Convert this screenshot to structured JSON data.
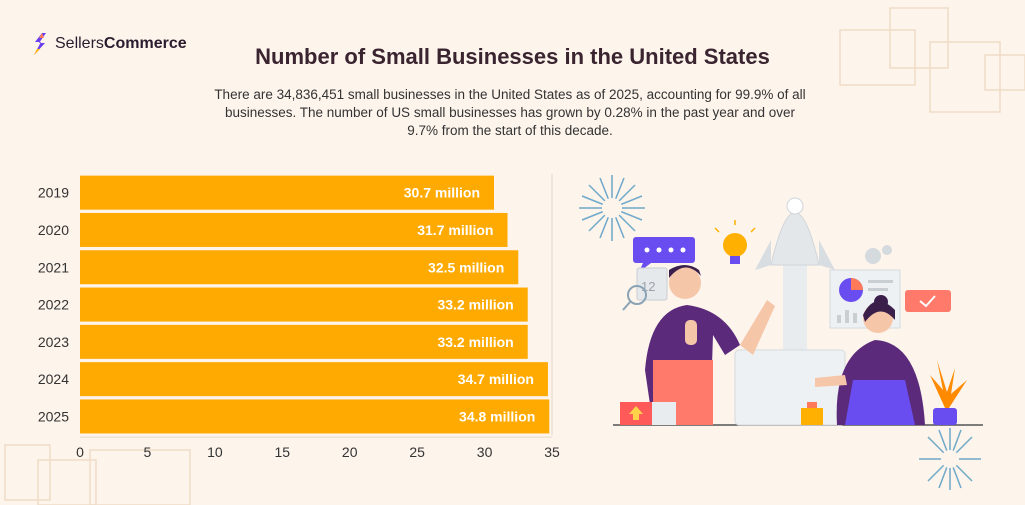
{
  "brand": {
    "name_part1": "Sellers",
    "name_part2": "Commerce"
  },
  "header": {
    "title": "Number of Small Businesses in the United States",
    "subtitle": "There are 34,836,451 small businesses in the United States as of 2025, accounting for 99.9% of all businesses. The number of US small businesses has grown by 0.28% in the past year and over 9.7% from the start of this decade."
  },
  "colors": {
    "bar": "#FFAA00",
    "text": "#333333",
    "title": "#3a2430",
    "background": "#fdf4ec"
  },
  "chart_data": {
    "type": "bar",
    "orientation": "horizontal",
    "title": "",
    "xlabel": "",
    "ylabel": "",
    "categories": [
      "2019",
      "2020",
      "2021",
      "2022",
      "2023",
      "2024",
      "2025"
    ],
    "values": [
      30.7,
      31.7,
      32.5,
      33.2,
      33.2,
      34.7,
      34.8
    ],
    "data_labels": [
      "30.7 million",
      "31.7 million",
      "32.5 million",
      "33.2 million",
      "33.2 million",
      "34.7 million",
      "34.8 million"
    ],
    "xlim": [
      0,
      35
    ],
    "xticks": [
      0,
      5,
      10,
      15,
      20,
      25,
      30,
      35
    ],
    "grid": false
  }
}
